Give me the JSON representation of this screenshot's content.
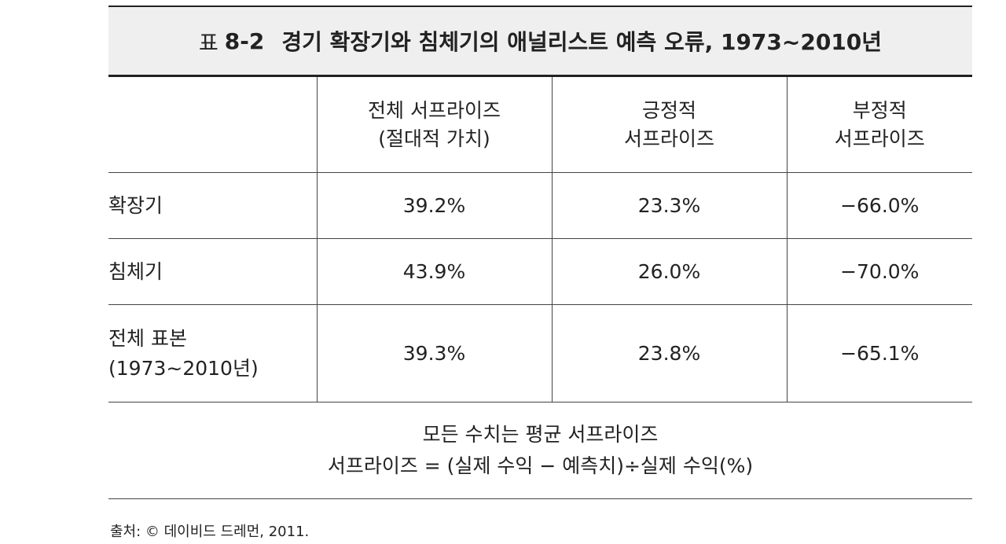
{
  "table": {
    "title_prefix": "표",
    "title_number": "8-2",
    "title_text": "경기 확장기와 침체기의 애널리스트 예측 오류, 1973~2010년",
    "headers": [
      {
        "line1": "",
        "line2": ""
      },
      {
        "line1": "전체 서프라이즈",
        "line2": "(절대적 가치)"
      },
      {
        "line1": "긍정적",
        "line2": "서프라이즈"
      },
      {
        "line1": "부정적",
        "line2": "서프라이즈"
      }
    ],
    "rows": [
      {
        "label_line1": "확장기",
        "label_line2": "",
        "total": "39.2%",
        "positive": "23.3%",
        "negative": "−66.0%"
      },
      {
        "label_line1": "침체기",
        "label_line2": "",
        "total": "43.9%",
        "positive": "26.0%",
        "negative": "−70.0%"
      },
      {
        "label_line1": "전체 표본",
        "label_line2": "(1973~2010년)",
        "total": "39.3%",
        "positive": "23.8%",
        "negative": "−65.1%"
      }
    ],
    "note_line1": "모든 수치는 평균 서프라이즈",
    "note_line2": "서프라이즈 = (실제 수익 − 예측치)÷실제 수익(%)"
  },
  "source": "출처: © 데이비드 드레먼, 2011."
}
